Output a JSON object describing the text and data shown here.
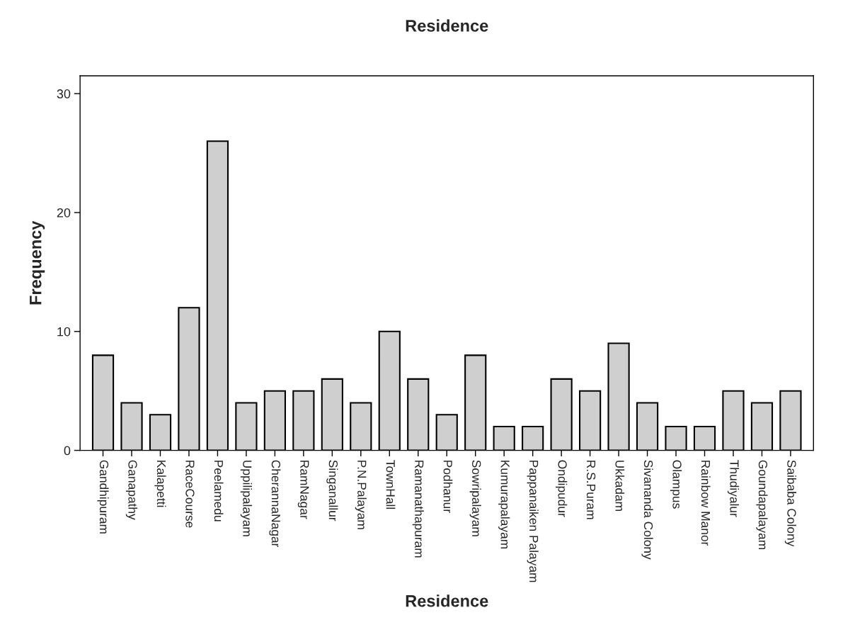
{
  "chart_data": {
    "type": "bar",
    "title": "Residence",
    "xlabel": "Residence",
    "ylabel": "Frequency",
    "categories": [
      "Gandhipuram",
      "Ganapathy",
      "Kalapetti",
      "RaceCourse",
      "Peelamedu",
      "Uppilipalayam",
      "CherannaNagar",
      "RamNagar",
      "Singanallur",
      "P.N.Palayam",
      "TownHall",
      "Ramanathapuram",
      "Podhanur",
      "Sowripalayam",
      "Kumurapalayam",
      "Pappanaiken Palayam",
      "Ondipudur",
      "R.S.Puram",
      "Ukkadam",
      "Sivananda Colony",
      "Olampus",
      "Rainbow Manor",
      "Thudiyalur",
      "Goundapalayam",
      "Saibaba Colony"
    ],
    "values": [
      8,
      4,
      3,
      12,
      26,
      4,
      5,
      5,
      6,
      4,
      10,
      6,
      3,
      8,
      2,
      2,
      6,
      5,
      9,
      4,
      2,
      2,
      5,
      4,
      5
    ],
    "color": "#cfcfcf",
    "ylim": [
      0,
      31.5
    ],
    "yticks": [
      0,
      10,
      20,
      30
    ],
    "grid": false
  }
}
